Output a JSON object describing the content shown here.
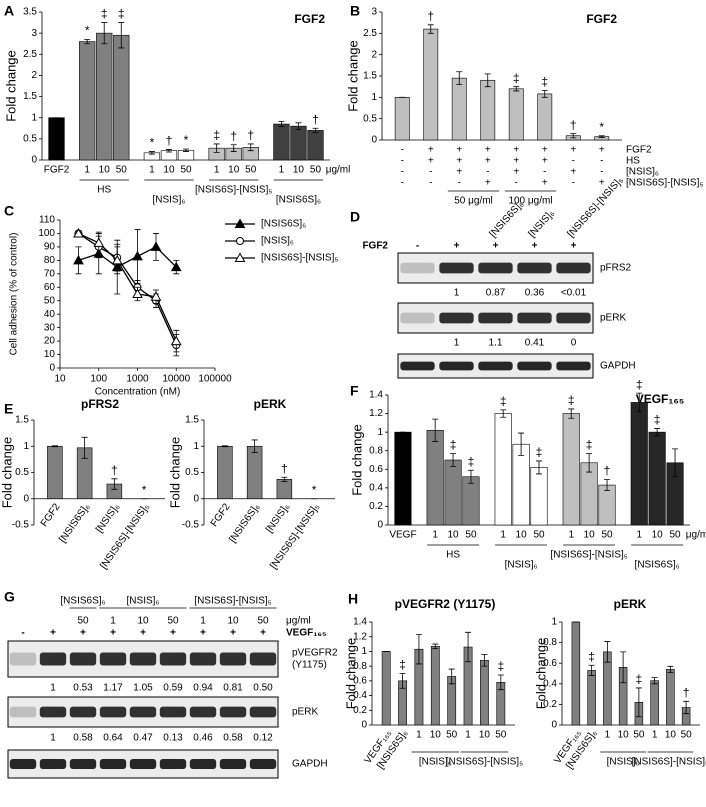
{
  "chart_data": [
    {
      "type": "bar",
      "panel": "A",
      "title": "FGF2",
      "y_label": "Fold change",
      "ylim": [
        0,
        3.5
      ],
      "yticks": [
        0,
        0.5,
        1,
        1.5,
        2,
        2.5,
        3,
        3.5
      ],
      "categories": [
        "FGF2",
        "1",
        "10",
        "50",
        "1",
        "10",
        "50",
        "1",
        "10",
        "50",
        "1",
        "10",
        "50"
      ],
      "groups": [
        null,
        "HS",
        "HS",
        "HS",
        "[NSIS]₆",
        "[NSIS]₆",
        "[NSIS]₆",
        "[NSIS6S]-[NSIS]₅",
        "[NSIS6S]-[NSIS]₅",
        "[NSIS6S]-[NSIS]₅",
        "[NSIS6S]₆",
        "[NSIS6S]₆",
        "[NSIS6S]₆"
      ],
      "unit": "μg/ml",
      "values": [
        1,
        2.8,
        3.0,
        2.95,
        0.17,
        0.22,
        0.23,
        0.28,
        0.28,
        0.3,
        0.85,
        0.8,
        0.7
      ],
      "errors": [
        0,
        0.05,
        0.25,
        0.3,
        0.03,
        0.03,
        0.03,
        0.1,
        0.08,
        0.08,
        0.06,
        0.08,
        0.05
      ],
      "colors": [
        "#000000",
        "#808080",
        "#808080",
        "#808080",
        "#ffffff",
        "#ffffff",
        "#ffffff",
        "#bfbfbf",
        "#bfbfbf",
        "#bfbfbf",
        "#404040",
        "#404040",
        "#404040"
      ],
      "annotations": [
        null,
        "*",
        "‡",
        "‡",
        "*",
        "†",
        "*",
        "‡",
        "†",
        "†",
        null,
        null,
        "†"
      ]
    },
    {
      "type": "bar",
      "panel": "B",
      "title": "FGF2",
      "y_label": "Fold change",
      "ylim": [
        0,
        3
      ],
      "yticks": [
        0,
        0.5,
        1,
        1.5,
        2,
        2.5,
        3
      ],
      "values": [
        1,
        2.6,
        1.45,
        1.4,
        1.2,
        1.08,
        0.1,
        0.08
      ],
      "errors": [
        0,
        0.1,
        0.15,
        0.15,
        0.05,
        0.08,
        0.05,
        0.02
      ],
      "color": "#bfbfbf",
      "annotations": [
        null,
        "†",
        null,
        null,
        "‡",
        "‡",
        "†",
        "*"
      ],
      "conditions": [
        {
          "label": "FGF2",
          "signs": [
            "-",
            "+",
            "+",
            "+",
            "+",
            "+",
            "+",
            "+"
          ]
        },
        {
          "label": "HS",
          "signs": [
            "-",
            "+",
            "+",
            "+",
            "+",
            "+",
            "-",
            "-"
          ]
        },
        {
          "label": "[NSIS]₆",
          "signs": [
            "-",
            "-",
            "+",
            "-",
            "+",
            "-",
            "+",
            "-"
          ]
        },
        {
          "label": "[NSIS6S]-[NSIS]₅",
          "signs": [
            "-",
            "-",
            "-",
            "+",
            "-",
            "+",
            "-",
            "+"
          ]
        }
      ],
      "doses": [
        null,
        null,
        "50 μg/ml",
        "50 μg/ml",
        "100 μg/ml",
        "100 μg/ml",
        null,
        null
      ]
    },
    {
      "type": "line",
      "panel": "C",
      "y_label": "Cell adhesion (% of control)",
      "x_label": "Concentration (nM)",
      "log_x": true,
      "xlim": [
        10,
        100000
      ],
      "xticks": [
        10,
        100,
        1000,
        10000,
        100000
      ],
      "ylim": [
        0,
        110
      ],
      "yticks": [
        0,
        10,
        20,
        30,
        40,
        50,
        60,
        70,
        80,
        90,
        100,
        110
      ],
      "legend": "right",
      "x": [
        30,
        100,
        300,
        1000,
        3000,
        10000
      ],
      "series": [
        {
          "name": "[NSIS6S]₆",
          "color": "#000000",
          "marker": "triangle",
          "filled": true,
          "values": [
            80,
            85,
            75,
            83,
            90,
            75
          ],
          "errors": [
            10,
            15,
            20,
            20,
            10,
            5
          ]
        },
        {
          "name": "[NSIS]₆",
          "color": "#000000",
          "marker": "circle",
          "filled": false,
          "values": [
            100,
            90,
            82,
            60,
            50,
            17
          ],
          "errors": [
            2,
            8,
            10,
            5,
            5,
            8
          ]
        },
        {
          "name": "[NSIS6S]-[NSIS]₅",
          "color": "#000000",
          "marker": "triangle",
          "filled": false,
          "values": [
            100,
            93,
            80,
            55,
            53,
            20
          ],
          "errors": [
            2,
            8,
            10,
            5,
            5,
            8
          ]
        }
      ]
    },
    {
      "type": "bar",
      "panel": "E",
      "title": "pFRS2",
      "y_label": "Fold change",
      "ylim": [
        -0.5,
        1.5
      ],
      "yticks": [
        -0.5,
        0,
        0.5,
        1,
        1.5
      ],
      "categories": [
        "FGF2",
        "[NSIS6S]₆",
        "[NSIS]₆",
        "[NSIS6S]-[NSIS]₅"
      ],
      "values": [
        1,
        0.97,
        0.28,
        0
      ],
      "errors": [
        0.01,
        0.2,
        0.1,
        0
      ],
      "color": "#808080",
      "annotations": [
        null,
        null,
        "†",
        "*"
      ]
    },
    {
      "type": "bar",
      "title": "pERK",
      "y_label": "Fold change",
      "ylim": [
        -0.5,
        1.5
      ],
      "yticks": [
        -0.5,
        0,
        0.5,
        1,
        1.5
      ],
      "categories": [
        "FGF2",
        "[NSIS6S]₆",
        "[NSIS]₆",
        "[NSIS6S]-[NSIS]₅"
      ],
      "values": [
        1,
        1.0,
        0.37,
        0
      ],
      "errors": [
        0.01,
        0.12,
        0.04,
        0
      ],
      "color": "#808080",
      "annotations": [
        null,
        null,
        "†",
        "*"
      ]
    },
    {
      "type": "bar",
      "panel": "F",
      "title": "VEGF₁₆₅",
      "y_label": "Fold change",
      "ylim": [
        0,
        1.4
      ],
      "yticks": [
        0,
        0.2,
        0.4,
        0.6,
        0.8,
        1,
        1.2,
        1.4
      ],
      "categories": [
        "VEGF",
        "1",
        "10",
        "50",
        "1",
        "10",
        "50",
        "1",
        "10",
        "50",
        "1",
        "10",
        "50"
      ],
      "groups": [
        null,
        "HS",
        "HS",
        "HS",
        "[NSIS]₆",
        "[NSIS]₆",
        "[NSIS]₆",
        "[NSIS6S]-[NSIS]₅",
        "[NSIS6S]-[NSIS]₅",
        "[NSIS6S]-[NSIS]₅",
        "[NSIS6S]₆",
        "[NSIS6S]₆",
        "[NSIS6S]₆"
      ],
      "unit": "μg/ml",
      "values": [
        1,
        1.02,
        0.7,
        0.52,
        1.2,
        0.87,
        0.62,
        1.2,
        0.67,
        0.43,
        1.32,
        1.0,
        0.67
      ],
      "errors": [
        0,
        0.12,
        0.07,
        0.07,
        0.04,
        0.12,
        0.07,
        0.05,
        0.1,
        0.06,
        0.1,
        0.04,
        0.15
      ],
      "colors": [
        "#000000",
        "#808080",
        "#808080",
        "#808080",
        "#ffffff",
        "#ffffff",
        "#ffffff",
        "#bfbfbf",
        "#bfbfbf",
        "#bfbfbf",
        "#262626",
        "#262626",
        "#262626"
      ],
      "annotations": [
        null,
        null,
        "‡",
        "‡",
        "‡",
        null,
        "‡",
        "‡",
        "‡",
        "†",
        "‡",
        "‡",
        null
      ]
    },
    {
      "type": "bar",
      "panel": "H",
      "title": "pVEGFR2 (Y1175)",
      "y_label": "Fold change",
      "ylim": [
        0,
        1.4
      ],
      "yticks": [
        0,
        0.2,
        0.4,
        0.6,
        0.8,
        1,
        1.2,
        1.4
      ],
      "categories": [
        "VEGF₁₆₅",
        "[NSIS6S]₆",
        "1",
        "10",
        "50",
        "1",
        "10",
        "50"
      ],
      "groups": [
        null,
        null,
        "[NSIS]₆",
        "[NSIS]₆",
        "[NSIS]₆",
        "[NSIS6S]-[NSIS]₅",
        "[NSIS6S]-[NSIS]₅",
        "[NSIS6S]-[NSIS]₅"
      ],
      "values": [
        1,
        0.6,
        1.03,
        1.07,
        0.66,
        1.06,
        0.88,
        0.58
      ],
      "errors": [
        0,
        0.1,
        0.2,
        0.03,
        0.1,
        0.2,
        0.08,
        0.1
      ],
      "color": "#808080",
      "annotations": [
        null,
        "‡",
        null,
        null,
        null,
        null,
        null,
        "‡"
      ]
    },
    {
      "type": "bar",
      "title": "pERK",
      "y_label": "Fold change",
      "ylim": [
        0,
        1
      ],
      "yticks": [
        0,
        0.2,
        0.4,
        0.6,
        0.8,
        1
      ],
      "categories": [
        "VEGF₁₆₅",
        "[NSIS6S]₆",
        "1",
        "10",
        "50",
        "1",
        "10",
        "50"
      ],
      "groups": [
        null,
        null,
        "[NSIS]₆",
        "[NSIS]₆",
        "[NSIS]₆",
        "[NSIS6S]-[NSIS]₅",
        "[NSIS6S]-[NSIS]₅",
        "[NSIS6S]-[NSIS]₅"
      ],
      "values": [
        1,
        0.53,
        0.71,
        0.56,
        0.22,
        0.43,
        0.54,
        0.17
      ],
      "errors": [
        0,
        0.05,
        0.1,
        0.15,
        0.14,
        0.03,
        0.03,
        0.06
      ],
      "color": "#808080",
      "annotations": [
        null,
        "‡",
        null,
        null,
        "‡",
        null,
        null,
        "†"
      ]
    }
  ],
  "blots": [
    {
      "panel": "D",
      "lane_header": "FGF2",
      "signs": [
        "-",
        "+",
        "+",
        "+",
        "+"
      ],
      "column_labels": [
        null,
        null,
        "[NSIS6S]₆",
        "[NSIS]₆",
        "[NSIS6S]-[NSIS]₅"
      ],
      "rows": [
        {
          "name": [
            "pFRS2"
          ],
          "quant": [
            null,
            "1",
            "0.87",
            "0.36",
            "<0.01"
          ]
        },
        {
          "name": [
            "pERK"
          ],
          "quant": [
            null,
            "1",
            "1.1",
            "0.41",
            "0"
          ]
        },
        {
          "name": [
            "GAPDH"
          ]
        }
      ]
    },
    {
      "panel": "G",
      "lane_header": "VEGF₁₆₅",
      "unit": "μg/ml",
      "signs": [
        "-",
        "+",
        "+",
        "+",
        "+",
        "+",
        "+",
        "+",
        "+"
      ],
      "groups": [
        null,
        null,
        "[NSIS6S]₆",
        "[NSIS]₆",
        "[NSIS]₆",
        "[NSIS]₆",
        "[NSIS6S]-[NSIS]₅",
        "[NSIS6S]-[NSIS]₅",
        "[NSIS6S]-[NSIS]₅"
      ],
      "doses": [
        null,
        null,
        50,
        1,
        10,
        50,
        1,
        10,
        50
      ],
      "rows": [
        {
          "name": [
            "pVEGFR2",
            "(Y1175)"
          ],
          "quant": [
            null,
            "1",
            "0.53",
            "1.17",
            "1.05",
            "0.59",
            "0.94",
            "0.81",
            "0.50"
          ]
        },
        {
          "name": [
            "pERK"
          ],
          "quant": [
            null,
            "1",
            "0.58",
            "0.64",
            "0.47",
            "0.13",
            "0.46",
            "0.58",
            "0.12"
          ]
        },
        {
          "name": [
            "GAPDH"
          ]
        }
      ]
    }
  ]
}
